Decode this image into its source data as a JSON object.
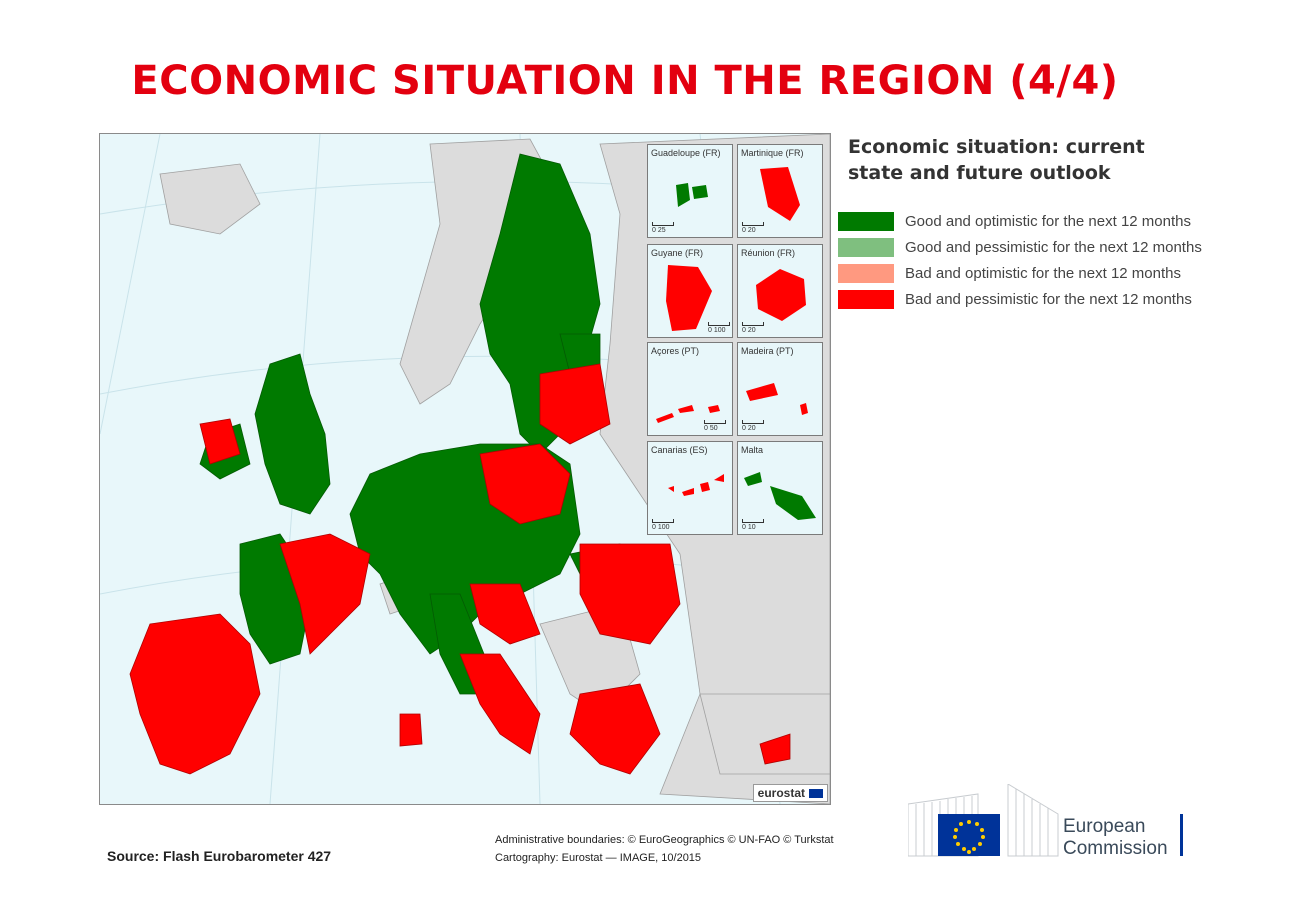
{
  "title": "ECONOMIC SITUATION IN THE REGION (4/4)",
  "legend": {
    "title": "Economic situation: current state and future outlook",
    "items": [
      {
        "label": "Good and optimistic for the next 12 months",
        "color": "#007a00"
      },
      {
        "label": "Good and pessimistic for the next 12 months",
        "color": "#7fbf7f"
      },
      {
        "label": "Bad and optimistic for the next 12 months",
        "color": "#ff9980"
      },
      {
        "label": "Bad and pessimistic for the next 12 months",
        "color": "#ff0000"
      }
    ]
  },
  "colors": {
    "good_optimistic": "#007a00",
    "bad_pessimistic": "#ff0000",
    "non_eu": "#dcdcdc",
    "sea": "#e8f7fa",
    "title": "#e3000f"
  },
  "insets": [
    {
      "label": "Guadeloupe (FR)",
      "scale": "0  25",
      "status": "good_optimistic"
    },
    {
      "label": "Martinique (FR)",
      "scale": "0  20",
      "status": "bad_pessimistic"
    },
    {
      "label": "Guyane (FR)",
      "scale": "0  100",
      "status": "bad_pessimistic"
    },
    {
      "label": "Réunion (FR)",
      "scale": "0  20",
      "status": "bad_pessimistic"
    },
    {
      "label": "Açores (PT)",
      "scale": "0  50",
      "status": "bad_pessimistic"
    },
    {
      "label": "Madeira (PT)",
      "scale": "0  20",
      "status": "bad_pessimistic"
    },
    {
      "label": "Canarias (ES)",
      "scale": "0  100",
      "status": "bad_pessimistic"
    },
    {
      "label": "Malta",
      "scale": "0  10",
      "status": "good_optimistic"
    }
  ],
  "map_badge": "eurostat",
  "source": "Source: Flash Eurobarometer 427",
  "credits": {
    "line1": "Administrative boundaries: © EuroGeographics © UN-FAO © Turkstat",
    "line2": "Cartography: Eurostat — IMAGE, 10/2015"
  },
  "logo": {
    "line1": "European",
    "line2": "Commission"
  }
}
